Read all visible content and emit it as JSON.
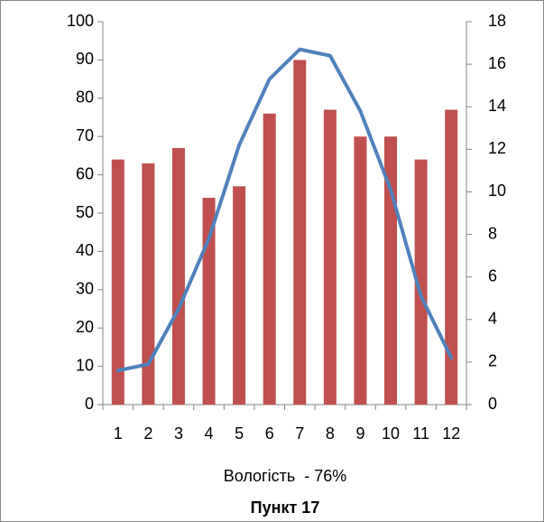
{
  "chart_data": {
    "type": "bar",
    "title": "Пункт 17",
    "x_label": "Вологість  - 76%",
    "categories": [
      "1",
      "2",
      "3",
      "4",
      "5",
      "6",
      "7",
      "8",
      "9",
      "10",
      "11",
      "12"
    ],
    "series": [
      {
        "type": "bar",
        "color": "#c0504d",
        "values": [
          64,
          63,
          67,
          54,
          57,
          76,
          90,
          77,
          70,
          70,
          64,
          77
        ]
      },
      {
        "type": "line",
        "axis": "y2",
        "color": "#4f81bd",
        "values": [
          1.6,
          1.9,
          4.5,
          7.8,
          12.2,
          15.3,
          16.7,
          16.4,
          13.8,
          10.1,
          5.1,
          2.2
        ]
      }
    ],
    "ylim": [
      0,
      100
    ],
    "yticks": [
      0,
      10,
      20,
      30,
      40,
      50,
      60,
      70,
      80,
      90,
      100
    ],
    "y2lim": [
      0,
      18
    ],
    "y2ticks": [
      0,
      2,
      4,
      6,
      8,
      10,
      12,
      14,
      16,
      18
    ],
    "grid": false
  }
}
